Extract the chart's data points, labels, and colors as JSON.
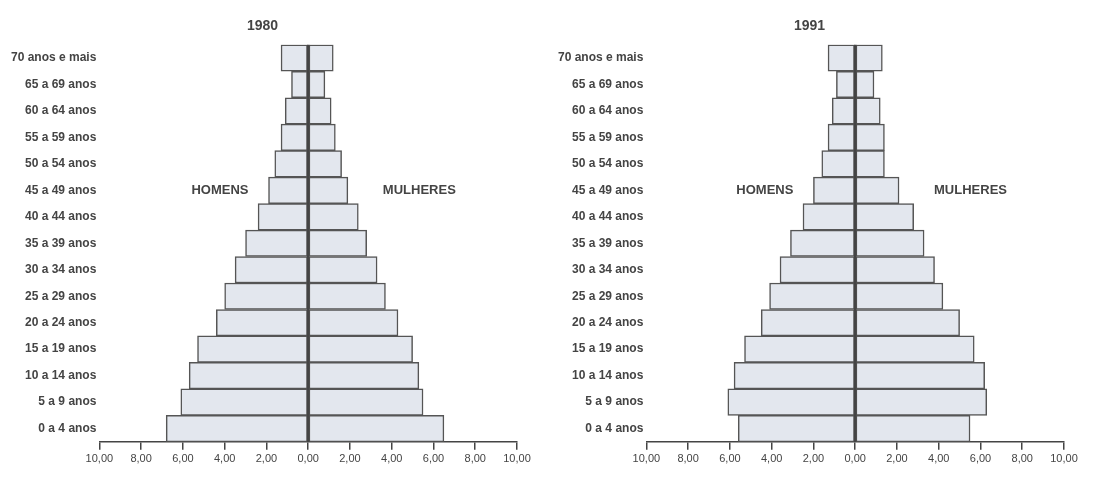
{
  "chart_data": [
    {
      "type": "bar",
      "title": "1980",
      "orientation": "horizontal",
      "stacked": true,
      "categories": [
        "70 anos e mais",
        "65 a 69 anos",
        "60 a 64 anos",
        "55 a 59 anos",
        "50 a 54 anos",
        "45 a 49 anos",
        "40 a 44 anos",
        "35 a 39 anos",
        "30 a 34 anos",
        "25 a 29 anos",
        "20 a 24 anos",
        "15 a 19 anos",
        "10 a 14 anos",
        "5 a 9 anos",
        "0 a 4 anos"
      ],
      "series": [
        {
          "name": "HOMENS",
          "color": "#e3e7ee",
          "values": [
            -1.3,
            -0.8,
            -1.1,
            -1.3,
            -1.6,
            -1.9,
            -2.4,
            -3.0,
            -3.5,
            -4.0,
            -4.4,
            -5.3,
            -5.7,
            -6.1,
            -6.8
          ]
        },
        {
          "name": "MULHERES",
          "color": "#e3e7ee",
          "values": [
            1.2,
            0.8,
            1.1,
            1.3,
            1.6,
            1.9,
            2.4,
            2.8,
            3.3,
            3.7,
            4.3,
            5.0,
            5.3,
            5.5,
            6.5
          ]
        }
      ],
      "xlim": [
        -10,
        10
      ],
      "xticks": [
        {
          "value": -10,
          "label": "10,00"
        },
        {
          "value": -8,
          "label": "8,00"
        },
        {
          "value": -6,
          "label": "6,00"
        },
        {
          "value": -4,
          "label": "4,00"
        },
        {
          "value": -2,
          "label": "2,00"
        },
        {
          "value": 0,
          "label": "0,00"
        },
        {
          "value": 2,
          "label": "2,00"
        },
        {
          "value": 4,
          "label": "4,00"
        },
        {
          "value": 6,
          "label": "6,00"
        },
        {
          "value": 8,
          "label": "8,00"
        },
        {
          "value": 10,
          "label": "10,00"
        }
      ],
      "ref_lines": [
        {
          "axis": "x",
          "value": 0,
          "color": "#444444"
        }
      ],
      "grid": false,
      "legend": false
    },
    {
      "type": "bar",
      "title": "1991",
      "orientation": "horizontal",
      "stacked": true,
      "categories": [
        "70 anos e mais",
        "65 a 69 anos",
        "60 a 64 anos",
        "55 a 59 anos",
        "50 a 54 anos",
        "45 a 49 anos",
        "40 a 44 anos",
        "35 a 39 anos",
        "30 a 34 anos",
        "25 a 29 anos",
        "20 a 24 anos",
        "15 a 19 anos",
        "10 a 14 anos",
        "5 a 9 anos",
        "0 a 4 anos"
      ],
      "series": [
        {
          "name": "HOMENS",
          "color": "#e3e7ee",
          "values": [
            -1.3,
            -0.9,
            -1.1,
            -1.3,
            -1.6,
            -2.0,
            -2.5,
            -3.1,
            -3.6,
            -4.1,
            -4.5,
            -5.3,
            -5.8,
            -6.1,
            -5.6
          ]
        },
        {
          "name": "MULHERES",
          "color": "#e3e7ee",
          "values": [
            1.3,
            0.9,
            1.2,
            1.4,
            1.4,
            2.1,
            2.8,
            3.3,
            3.8,
            4.2,
            5.0,
            5.7,
            6.2,
            6.3,
            5.5
          ]
        }
      ],
      "xlim": [
        -10,
        10
      ],
      "xticks": [
        {
          "value": -10,
          "label": "10,00"
        },
        {
          "value": -8,
          "label": "8,00"
        },
        {
          "value": -6,
          "label": "6,00"
        },
        {
          "value": -4,
          "label": "4,00"
        },
        {
          "value": -2,
          "label": "2,00"
        },
        {
          "value": 0,
          "label": "0,00"
        },
        {
          "value": 2,
          "label": "2,00"
        },
        {
          "value": 4,
          "label": "4,00"
        },
        {
          "value": 6,
          "label": "6,00"
        },
        {
          "value": 8,
          "label": "8,00"
        },
        {
          "value": 10,
          "label": "10,00"
        }
      ],
      "ref_lines": [
        {
          "axis": "x",
          "value": 0,
          "color": "#444444"
        }
      ],
      "grid": false,
      "legend": false
    }
  ]
}
